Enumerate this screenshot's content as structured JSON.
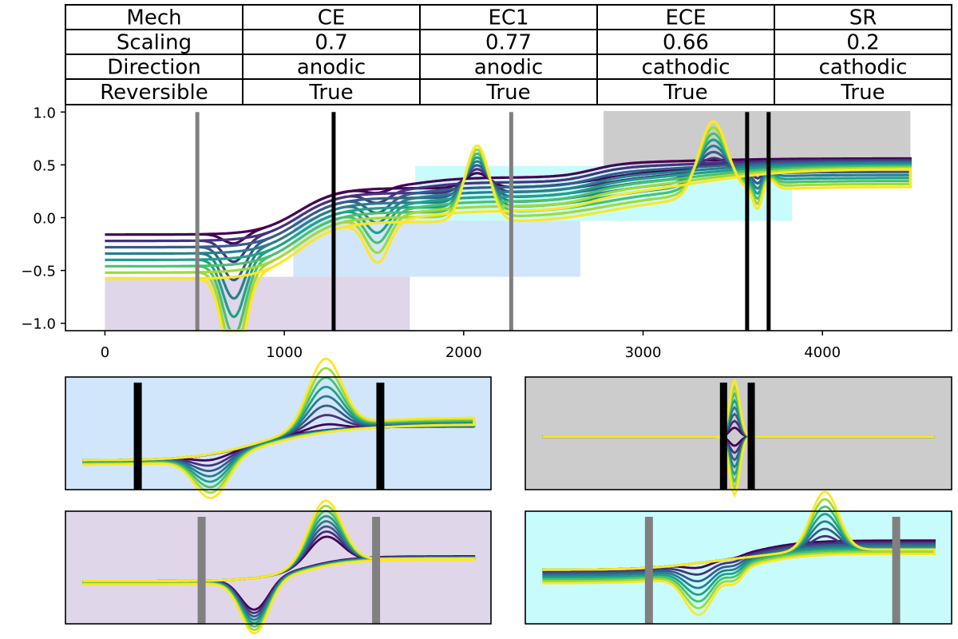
{
  "table": {
    "rows": [
      [
        "Mech",
        "CE",
        "EC1",
        "ECE",
        "SR"
      ],
      [
        "Scaling",
        "0.7",
        "0.77",
        "0.66",
        "0.2"
      ],
      [
        "Direction",
        "anodic",
        "anodic",
        "cathodic",
        "cathodic"
      ],
      [
        "Reversible",
        "True",
        "True",
        "True",
        "True"
      ]
    ]
  },
  "colors": {
    "series": [
      "#440154",
      "#46327e",
      "#365c8d",
      "#277f8e",
      "#1fa187",
      "#4ac16d",
      "#a0da39",
      "#fde725"
    ],
    "lavender": "#e0d6ea",
    "lightblue": "#d2e6fb",
    "cyan": "#c8fcfc",
    "gray": "#cccccc",
    "marker_black": "#000000",
    "marker_gray": "#808080"
  },
  "chart_data": [
    {
      "type": "line",
      "panel": "main",
      "xlim": [
        -220,
        4720
      ],
      "ylim": [
        -1.07,
        1.07
      ],
      "xticks": [
        "0",
        "1000",
        "2000",
        "3000",
        "4000"
      ],
      "xtick_values": [
        0,
        1000,
        2000,
        3000,
        4000
      ],
      "yticks": [
        "−1.0",
        "−0.5",
        "0.0",
        "0.5",
        "1.0"
      ],
      "ytick_values": [
        -1.0,
        -0.5,
        0.0,
        0.5,
        1.0
      ],
      "series_count": 8,
      "shaded_regions": [
        {
          "x": [
            0,
            1700
          ],
          "y": [
            -1.07,
            -0.56
          ],
          "color": "lavender"
        },
        {
          "x": [
            1050,
            2650
          ],
          "y": [
            -0.56,
            0.0
          ],
          "color": "lightblue"
        },
        {
          "x": [
            1730,
            3830
          ],
          "y": [
            -0.03,
            0.49
          ],
          "color": "cyan"
        },
        {
          "x": [
            2780,
            4490
          ],
          "y": [
            0.49,
            1.01
          ],
          "color": "gray"
        }
      ],
      "vertical_markers": [
        {
          "x": 515,
          "color": "marker_gray"
        },
        {
          "x": 1275,
          "color": "marker_black"
        },
        {
          "x": 2265,
          "color": "marker_gray"
        },
        {
          "x": 3580,
          "color": "marker_black"
        },
        {
          "x": 3700,
          "color": "marker_black"
        }
      ]
    },
    {
      "type": "line",
      "panel": "inset-top-left",
      "background": "lightblue",
      "series_count": 8
    },
    {
      "type": "line",
      "panel": "inset-top-right",
      "background": "gray",
      "series_count": 8
    },
    {
      "type": "line",
      "panel": "inset-bottom-left",
      "background": "lavender",
      "series_count": 8
    },
    {
      "type": "line",
      "panel": "inset-bottom-right",
      "background": "cyan",
      "series_count": 8
    }
  ]
}
